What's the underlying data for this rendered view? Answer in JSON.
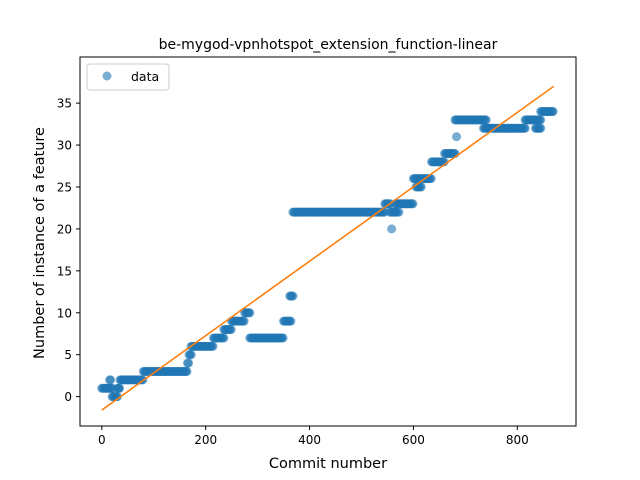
{
  "chart_data": {
    "type": "scatter",
    "title": "be-mygod-vpnhotspot_extension_function-linear",
    "xlabel": "Commit number",
    "ylabel": "Number of instance of a feature",
    "xlim": [
      -42,
      913
    ],
    "ylim": [
      -3.5,
      40.5
    ],
    "xticks": [
      0,
      200,
      400,
      600,
      800
    ],
    "yticks": [
      0,
      5,
      10,
      15,
      20,
      25,
      30,
      35
    ],
    "grid": false,
    "legend": {
      "placement": "top-left",
      "entries": [
        "data"
      ]
    },
    "colors": {
      "data": "#1f77b4",
      "fit": "#ff7f0e"
    },
    "series": [
      {
        "name": "data",
        "kind": "points",
        "segments": [
          {
            "x": [
              0,
              20
            ],
            "y": 1
          },
          {
            "x": [
              15,
              18
            ],
            "y": 2
          },
          {
            "x": [
              20,
              30
            ],
            "y": 0
          },
          {
            "x": [
              30,
              35
            ],
            "y": 1
          },
          {
            "x": [
              35,
              80
            ],
            "y": 2
          },
          {
            "x": [
              80,
              165
            ],
            "y": 3
          },
          {
            "x": [
              165,
              168
            ],
            "y": 4
          },
          {
            "x": [
              168,
              172
            ],
            "y": 5
          },
          {
            "x": [
              172,
              215
            ],
            "y": 6
          },
          {
            "x": [
              215,
              235
            ],
            "y": 7
          },
          {
            "x": [
              235,
              250
            ],
            "y": 8
          },
          {
            "x": [
              250,
              275
            ],
            "y": 9
          },
          {
            "x": [
              275,
              285
            ],
            "y": 10
          },
          {
            "x": [
              285,
              350
            ],
            "y": 7
          },
          {
            "x": [
              350,
              365
            ],
            "y": 9
          },
          {
            "x": [
              362,
              368
            ],
            "y": 12
          },
          {
            "x": [
              368,
              545
            ],
            "y": 22
          },
          {
            "x": [
              545,
              555
            ],
            "y": 23
          },
          {
            "x": [
              555,
              570
            ],
            "y": 22
          },
          {
            "x": [
              565,
              600
            ],
            "y": 23
          },
          {
            "x": [
              600,
              610
            ],
            "y": 26
          },
          {
            "x": [
              605,
              615
            ],
            "y": 25
          },
          {
            "x": [
              612,
              635
            ],
            "y": 26
          },
          {
            "x": [
              635,
              660
            ],
            "y": 28
          },
          {
            "x": [
              660,
              680
            ],
            "y": 29
          },
          {
            "x": [
              680,
              740
            ],
            "y": 33
          },
          {
            "x": [
              735,
              815
            ],
            "y": 32
          },
          {
            "x": [
              815,
              845
            ],
            "y": 33
          },
          {
            "x": [
              835,
              845
            ],
            "y": 32
          },
          {
            "x": [
              845,
              870
            ],
            "y": 34
          }
        ],
        "outliers": [
          {
            "x": 33,
            "y": 1
          },
          {
            "x": 558,
            "y": 20
          },
          {
            "x": 572,
            "y": 22
          },
          {
            "x": 683,
            "y": 31
          }
        ]
      },
      {
        "name": "fit",
        "kind": "line",
        "x": [
          0,
          870
        ],
        "y": [
          -1.6,
          37
        ]
      }
    ]
  }
}
